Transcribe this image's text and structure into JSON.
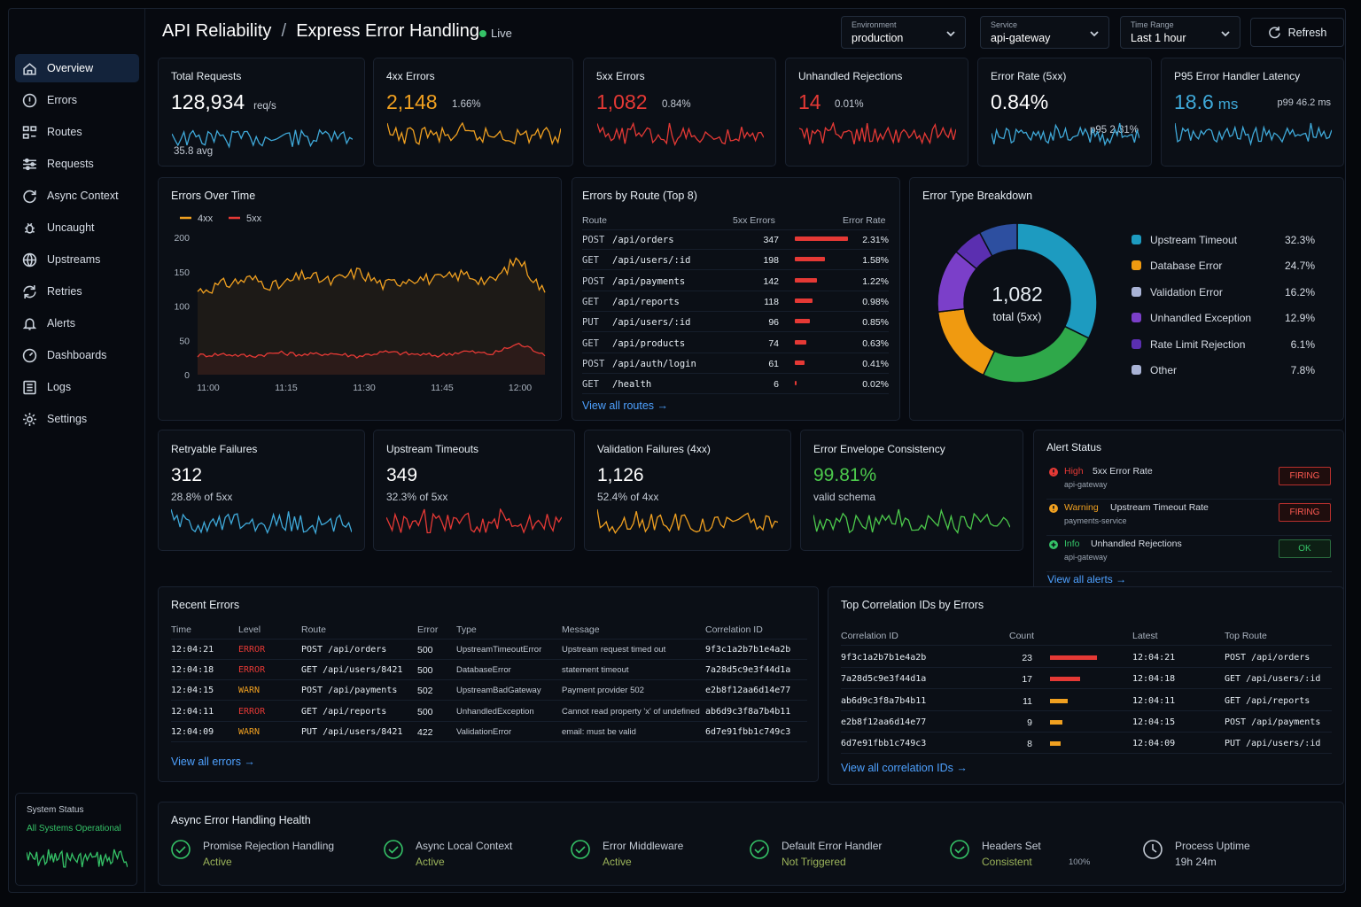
{
  "header": {
    "title": "API Reliability",
    "sep": "/",
    "subtitle": "Express Error Handling",
    "live": "Live",
    "environment": {
      "label": "Environment",
      "value": "production"
    },
    "service": {
      "label": "Service",
      "value": "api-gateway"
    },
    "time_range": {
      "label": "Time Range",
      "value": "Last 1 hour"
    },
    "refresh": "Refresh"
  },
  "sidebar": {
    "items": [
      {
        "label": "Overview",
        "icon": "home-icon"
      },
      {
        "label": "Errors",
        "icon": "alert-circle-icon"
      },
      {
        "label": "Routes",
        "icon": "routes-icon"
      },
      {
        "label": "Requests",
        "icon": "sliders-icon"
      },
      {
        "label": "Async Context",
        "icon": "refresh-circle-icon"
      },
      {
        "label": "Uncaught",
        "icon": "bug-icon"
      },
      {
        "label": "Upstreams",
        "icon": "globe-icon"
      },
      {
        "label": "Retries",
        "icon": "retry-icon"
      },
      {
        "label": "Alerts",
        "icon": "bell-icon"
      },
      {
        "label": "Dashboards",
        "icon": "gauge-icon"
      },
      {
        "label": "Logs",
        "icon": "list-icon"
      },
      {
        "label": "Settings",
        "icon": "gear-icon"
      }
    ],
    "system_status": {
      "title": "System Status",
      "status": "All Systems Operational"
    }
  },
  "kpis": [
    {
      "title": "Total Requests",
      "value": "128,934",
      "unit": "req/s",
      "sub": "35.8 avg",
      "color": "#3fa9d9"
    },
    {
      "title": "4xx Errors",
      "value": "2,148",
      "sub": "1.66%",
      "color": "#f0a020"
    },
    {
      "title": "5xx Errors",
      "value": "1,082",
      "sub": "0.84%",
      "color": "#e53935"
    },
    {
      "title": "Unhandled Rejections",
      "value": "14",
      "sub": "0.01%",
      "color": "#e53935"
    },
    {
      "title": "Error Rate (5xx)",
      "value": "0.84%",
      "sub": "p95 2.31%",
      "color": "#3fa9d9"
    },
    {
      "title": "P95 Error Handler Latency",
      "value": "18.6",
      "unit": "ms",
      "sub": "p99 46.2 ms",
      "color": "#3fa9d9"
    }
  ],
  "errors_over_time": {
    "title": "Errors Over Time",
    "legend": [
      "4xx",
      "5xx"
    ],
    "colors": [
      "#f0a020",
      "#e53935"
    ],
    "yticks": [
      "200",
      "150",
      "100",
      "50",
      "0"
    ],
    "xticks": [
      "11:00",
      "11:15",
      "11:30",
      "11:45",
      "12:00"
    ]
  },
  "chart_data": {
    "type": "line",
    "title": "Errors Over Time",
    "ylim": [
      0,
      200
    ],
    "x": [
      "11:00",
      "11:05",
      "11:10",
      "11:15",
      "11:20",
      "11:25",
      "11:30",
      "11:35",
      "11:40",
      "11:45",
      "11:50",
      "11:55",
      "12:00",
      "12:05"
    ],
    "series": [
      {
        "name": "4xx",
        "values": [
          122,
          132,
          140,
          128,
          145,
          135,
          150,
          130,
          142,
          138,
          147,
          134,
          170,
          118
        ]
      },
      {
        "name": "5xx",
        "values": [
          28,
          30,
          27,
          32,
          29,
          31,
          27,
          33,
          30,
          28,
          34,
          30,
          45,
          30
        ]
      }
    ]
  },
  "routes": {
    "title": "Errors by Route (Top 8)",
    "headers": [
      "Route",
      "5xx Errors",
      "Error Rate"
    ],
    "rows": [
      {
        "method": "POST",
        "path": "/api/orders",
        "count": "347",
        "rate": "2.31%",
        "pct": 1.0
      },
      {
        "method": "GET",
        "path": "/api/users/:id",
        "count": "198",
        "rate": "1.58%",
        "pct": 0.57
      },
      {
        "method": "POST",
        "path": "/api/payments",
        "count": "142",
        "rate": "1.22%",
        "pct": 0.41
      },
      {
        "method": "GET",
        "path": "/api/reports",
        "count": "118",
        "rate": "0.98%",
        "pct": 0.34
      },
      {
        "method": "PUT",
        "path": "/api/users/:id",
        "count": "96",
        "rate": "0.85%",
        "pct": 0.28
      },
      {
        "method": "GET",
        "path": "/api/products",
        "count": "74",
        "rate": "0.63%",
        "pct": 0.21
      },
      {
        "method": "POST",
        "path": "/api/auth/login",
        "count": "61",
        "rate": "0.41%",
        "pct": 0.18
      },
      {
        "method": "GET",
        "path": "/health",
        "count": "6",
        "rate": "0.02%",
        "pct": 0.03
      }
    ],
    "link": "View all routes →"
  },
  "breakdown": {
    "title": "Error Type Breakdown",
    "total": "1,082",
    "total_label": "total (5xx)",
    "items": [
      {
        "label": "Upstream Timeout",
        "pct": "32.3%",
        "value": 32.3,
        "color": "#1d9bc0"
      },
      {
        "label": "Database Error",
        "pct": "24.7%",
        "value": 24.7,
        "color": "#2fa84a"
      },
      {
        "label": "Validation Error",
        "pct": "16.2%",
        "value": 16.2,
        "color": "#f09a10"
      },
      {
        "label": "Unhandled Exception",
        "pct": "12.9%",
        "value": 12.9,
        "color": "#7b3fc9"
      },
      {
        "label": "Rate Limit Rejection",
        "pct": "6.1%",
        "value": 6.1,
        "color": "#5b2fb0"
      },
      {
        "label": "Other",
        "pct": "7.8%",
        "value": 7.8,
        "color": "#2d4fa0"
      }
    ],
    "legend_colors": [
      "#1d9bc0",
      "#f09a10",
      "#a9b3d6",
      "#7b3fc9",
      "#5b2fb0",
      "#a9b3d6"
    ]
  },
  "mini": [
    {
      "title": "Retryable Failures",
      "value": "312",
      "sub": "28.8% of 5xx",
      "color": "#3fa9d9"
    },
    {
      "title": "Upstream Timeouts",
      "value": "349",
      "sub": "32.3% of 5xx",
      "color": "#e53935"
    },
    {
      "title": "Validation Failures (4xx)",
      "value": "1,126",
      "sub": "52.4% of 4xx",
      "color": "#f0a020"
    },
    {
      "title": "Error Envelope Consistency",
      "value": "99.81%",
      "sub": "valid schema",
      "color": "#4cc94c"
    }
  ],
  "alerts": {
    "title": "Alert Status",
    "items": [
      {
        "level": "High",
        "name": "5xx Error Rate",
        "service": "api-gateway",
        "state": "FIRING",
        "color": "#e53935"
      },
      {
        "level": "Warning",
        "name": "Upstream Timeout Rate",
        "service": "payments-service",
        "state": "FIRING",
        "color": "#f0a020"
      },
      {
        "level": "Info",
        "name": "Unhandled Rejections",
        "service": "api-gateway",
        "state": "OK",
        "color": "#35c267"
      }
    ],
    "link": "View all alerts →"
  },
  "recent": {
    "title": "Recent Errors",
    "headers": [
      "Time",
      "Level",
      "Route",
      "Error",
      "Type",
      "Message",
      "Correlation ID"
    ],
    "rows": [
      {
        "time": "12:04:21",
        "level": "ERROR",
        "route": "POST /api/orders",
        "code": "500",
        "type": "UpstreamTimeoutError",
        "msg": "Upstream request timed out",
        "cid": "9f3c1a2b7b1e4a2b"
      },
      {
        "time": "12:04:18",
        "level": "ERROR",
        "route": "GET /api/users/8421",
        "code": "500",
        "type": "DatabaseError",
        "msg": "statement timeout",
        "cid": "7a28d5c9e3f44d1a"
      },
      {
        "time": "12:04:15",
        "level": "WARN",
        "route": "POST /api/payments",
        "code": "502",
        "type": "UpstreamBadGateway",
        "msg": "Payment provider 502",
        "cid": "e2b8f12aa6d14e77"
      },
      {
        "time": "12:04:11",
        "level": "ERROR",
        "route": "GET /api/reports",
        "code": "500",
        "type": "UnhandledException",
        "msg": "Cannot read property 'x' of undefined",
        "cid": "ab6d9c3f8a7b4b11"
      },
      {
        "time": "12:04:09",
        "level": "WARN",
        "route": "PUT /api/users/8421",
        "code": "422",
        "type": "ValidationError",
        "msg": "email: must be valid",
        "cid": "6d7e91fbb1c749c3"
      }
    ],
    "link": "View all errors →"
  },
  "correlation": {
    "title": "Top Correlation IDs by Errors",
    "headers": [
      "Correlation ID",
      "Count",
      "Latest",
      "Top Route"
    ],
    "rows": [
      {
        "cid": "9f3c1a2b7b1e4a2b",
        "count": "23",
        "latest": "12:04:21",
        "route": "POST /api/orders",
        "pct": 1.0,
        "color": "#e53935"
      },
      {
        "cid": "7a28d5c9e3f44d1a",
        "count": "17",
        "latest": "12:04:18",
        "route": "GET /api/users/:id",
        "pct": 0.65,
        "color": "#e53935"
      },
      {
        "cid": "ab6d9c3f8a7b4b11",
        "count": "11",
        "latest": "12:04:11",
        "route": "GET /api/reports",
        "pct": 0.37,
        "color": "#f0a020"
      },
      {
        "cid": "e2b8f12aa6d14e77",
        "count": "9",
        "latest": "12:04:15",
        "route": "POST /api/payments",
        "pct": 0.26,
        "color": "#f0a020"
      },
      {
        "cid": "6d7e91fbb1c749c3",
        "count": "8",
        "latest": "12:04:09",
        "route": "PUT /api/users/:id",
        "pct": 0.22,
        "color": "#f0a020"
      }
    ],
    "link": "View all correlation IDs →"
  },
  "health": {
    "title": "Async Error Handling Health",
    "items": [
      {
        "name": "Promise Rejection Handling",
        "status": "Active",
        "color": "#35c267"
      },
      {
        "name": "Async Local Context",
        "status": "Active",
        "color": "#35c267"
      },
      {
        "name": "Error Middleware",
        "status": "Active",
        "color": "#35c267"
      },
      {
        "name": "Default Error Handler",
        "status": "Not Triggered",
        "color": "#35c267"
      },
      {
        "name": "Headers Set",
        "status": "Consistent",
        "extra": "100%",
        "color": "#35c267"
      },
      {
        "name": "Process Uptime",
        "status": "19h 24m",
        "color": "#c3cad4"
      }
    ]
  }
}
